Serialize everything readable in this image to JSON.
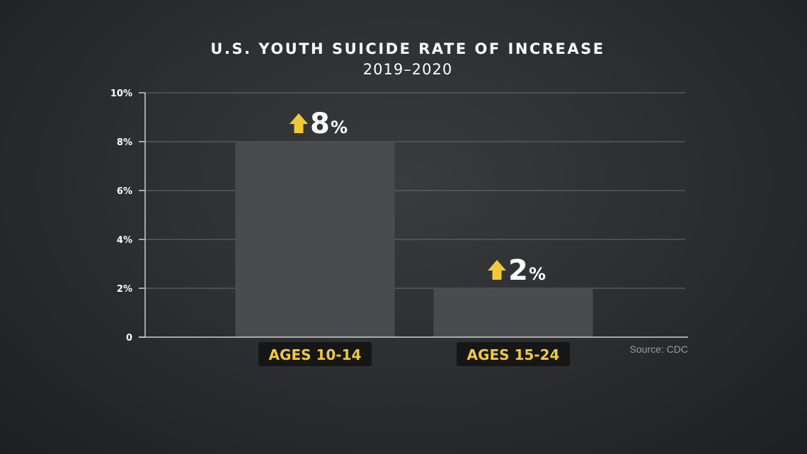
{
  "chart_data": {
    "type": "bar",
    "title": "U.S. YOUTH SUICIDE RATE OF INCREASE",
    "subtitle": "2019–2020",
    "categories": [
      "AGES 10-14",
      "AGES 15-24"
    ],
    "values": [
      8,
      2
    ],
    "value_labels": [
      {
        "number": "8",
        "unit": "%"
      },
      {
        "number": "2",
        "unit": "%"
      }
    ],
    "y_ticks": [
      {
        "value": 0,
        "label": "0"
      },
      {
        "value": 2,
        "label": "2%"
      },
      {
        "value": 4,
        "label": "4%"
      },
      {
        "value": 6,
        "label": "6%"
      },
      {
        "value": 8,
        "label": "8%"
      },
      {
        "value": 10,
        "label": "10%"
      }
    ],
    "ylim": [
      0,
      10
    ],
    "grid": true,
    "source": "Source: CDC",
    "colors": {
      "bar": "#4a4b4d",
      "accent": "#f0c93b",
      "grid": "#6a6b6d",
      "label_bg": "#161616"
    }
  }
}
